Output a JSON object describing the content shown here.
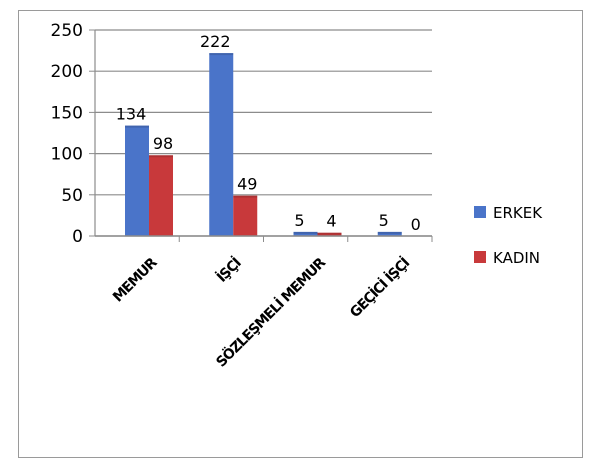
{
  "chart_data": {
    "type": "bar",
    "title": "",
    "xlabel": "",
    "ylabel": "",
    "categories": [
      "MEMUR",
      "İŞÇİ",
      "SÖZLEŞMELİ MEMUR",
      "GEÇİCİ İŞÇİ"
    ],
    "series": [
      {
        "name": "ERKEK",
        "values": [
          134,
          222,
          5,
          5
        ],
        "color": "#4a74c9"
      },
      {
        "name": "KADIN",
        "values": [
          98,
          49,
          4,
          0
        ],
        "color": "#c8393b"
      }
    ],
    "ylim": [
      0,
      250
    ],
    "yticks": [
      0,
      50,
      100,
      150,
      200,
      250
    ],
    "grid": true,
    "legend_position": "right"
  }
}
